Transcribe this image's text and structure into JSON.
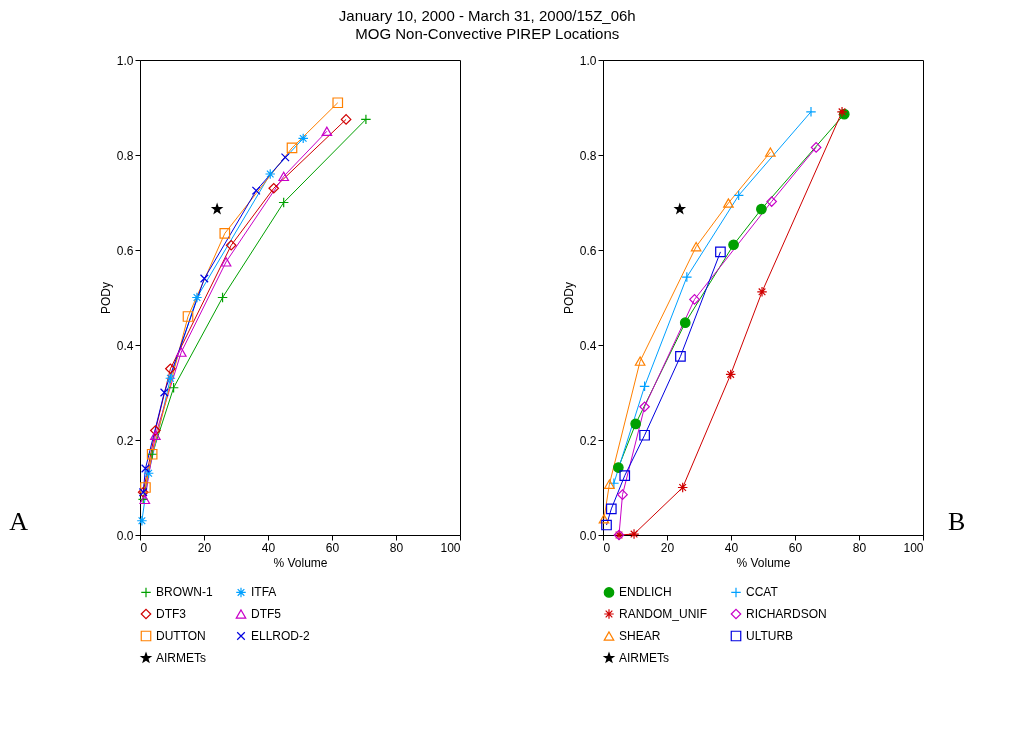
{
  "chart_data": [
    {
      "type": "line",
      "title": "January 10, 2000 - March 31, 2000/15Z_06h",
      "subtitle": "MOG Non-Convective PIREP Locations",
      "xlabel": "% Volume",
      "ylabel": "PODy",
      "xlim": [
        0,
        100
      ],
      "xticks": [
        0,
        20,
        40,
        60,
        80,
        100
      ],
      "ylim": [
        0,
        1
      ],
      "yticks": [
        {
          "value": 0,
          "label": "0.0"
        },
        {
          "value": 0.2,
          "label": "0.2"
        },
        {
          "value": 0.4,
          "label": "0.4"
        },
        {
          "value": 0.6,
          "label": "0.6"
        },
        {
          "value": 0.8,
          "label": "0.8"
        },
        {
          "value": 1,
          "label": "1.0"
        }
      ],
      "grid": false,
      "legend": "bottom",
      "line_style": "solid",
      "annotations": [
        "A"
      ],
      "series": [
        {
          "name": "BROWN-1",
          "color": "#00a000",
          "marker": "plus",
          "x": [
            1,
            3.8,
            10.5,
            25.8,
            44.9,
            70.6
          ],
          "values": [
            0.075,
            0.17,
            0.31,
            0.5,
            0.7,
            0.875
          ]
        },
        {
          "name": "ITFA",
          "color": "#00a0ff",
          "marker": "cross",
          "x": [
            0.6,
            2.7,
            9.5,
            17.8,
            40.7,
            51
          ],
          "values": [
            0.03,
            0.13,
            0.33,
            0.5,
            0.76,
            0.835
          ]
        },
        {
          "name": "DTF3",
          "color": "#d00000",
          "marker": "diamond",
          "x": [
            1,
            4.8,
            9.5,
            28.5,
            41.8,
            64.4
          ],
          "values": [
            0.09,
            0.22,
            0.35,
            0.61,
            0.73,
            0.875
          ]
        },
        {
          "name": "DTF5",
          "color": "#c800c8",
          "marker": "triangle",
          "x": [
            1.5,
            4.8,
            12.9,
            26.9,
            44.9,
            58.4
          ],
          "values": [
            0.075,
            0.21,
            0.385,
            0.575,
            0.755,
            0.85
          ]
        },
        {
          "name": "DUTTON",
          "color": "#ff8000",
          "marker": "square",
          "x": [
            1.7,
            3.8,
            15,
            26.5,
            47.5,
            61.8
          ],
          "values": [
            0.1,
            0.17,
            0.46,
            0.635,
            0.815,
            0.91
          ]
        },
        {
          "name": "ELLROD-2",
          "color": "#0000e0",
          "marker": "x",
          "x": [
            1,
            1.7,
            7.6,
            20.1,
            36.3,
            45.4
          ],
          "values": [
            0.09,
            0.14,
            0.3,
            0.54,
            0.725,
            0.795
          ]
        },
        {
          "name": "AIRMETs",
          "type": "scatter",
          "color": "#000000",
          "marker": "star",
          "x": [
            24.1
          ],
          "values": [
            0.686
          ]
        }
      ]
    },
    {
      "type": "line",
      "xlabel": "% Volume",
      "ylabel": "PODy",
      "xlim": [
        0,
        100
      ],
      "xticks": [
        0,
        20,
        40,
        60,
        80,
        100
      ],
      "ylim": [
        0,
        1
      ],
      "yticks": [
        {
          "value": 0,
          "label": "0.0"
        },
        {
          "value": 0.2,
          "label": "0.2"
        },
        {
          "value": 0.4,
          "label": "0.4"
        },
        {
          "value": 0.6,
          "label": "0.6"
        },
        {
          "value": 0.8,
          "label": "0.8"
        },
        {
          "value": 1,
          "label": "1.0"
        }
      ],
      "grid": false,
      "legend": "bottom",
      "line_style": "solid",
      "annotations": [
        "B"
      ],
      "series": [
        {
          "name": "ENDLICH",
          "color": "#00a000",
          "marker": "circle",
          "x": [
            4.8,
            10.2,
            25.7,
            40.8,
            49.5,
            75.4
          ],
          "values": [
            0.142,
            0.234,
            0.447,
            0.611,
            0.686,
            0.886
          ]
        },
        {
          "name": "CCAT",
          "color": "#00a0ff",
          "marker": "plus",
          "x": [
            3.4,
            13,
            26.2,
            42.4,
            65
          ],
          "values": [
            0.109,
            0.313,
            0.543,
            0.715,
            0.891
          ]
        },
        {
          "name": "RANDOM_UNIF",
          "color": "#d00000",
          "marker": "cross",
          "x": [
            5,
            9.7,
            24.9,
            39.9,
            49.7,
            74.7
          ],
          "values": [
            0,
            0.002,
            0.1,
            0.338,
            0.512,
            0.891
          ]
        },
        {
          "name": "RICHARDSON",
          "color": "#c800c8",
          "marker": "diamond",
          "x": [
            5,
            6.1,
            13,
            28.6,
            52.7,
            66.6
          ],
          "values": [
            0,
            0.085,
            0.27,
            0.496,
            0.702,
            0.816
          ]
        },
        {
          "name": "SHEAR",
          "color": "#ff8000",
          "marker": "triangle",
          "x": [
            0.3,
            2,
            11.6,
            29.1,
            39.2,
            52.3
          ],
          "values": [
            0.034,
            0.107,
            0.366,
            0.607,
            0.699,
            0.806
          ]
        },
        {
          "name": "ULTURB",
          "color": "#0000e0",
          "marker": "square",
          "x": [
            1.1,
            2.6,
            6.8,
            13,
            24.2,
            36.7
          ],
          "values": [
            0.021,
            0.055,
            0.125,
            0.21,
            0.376,
            0.596
          ]
        },
        {
          "name": "AIRMETs",
          "type": "scatter",
          "color": "#000000",
          "marker": "star",
          "x": [
            24
          ],
          "values": [
            0.686
          ]
        }
      ]
    }
  ]
}
